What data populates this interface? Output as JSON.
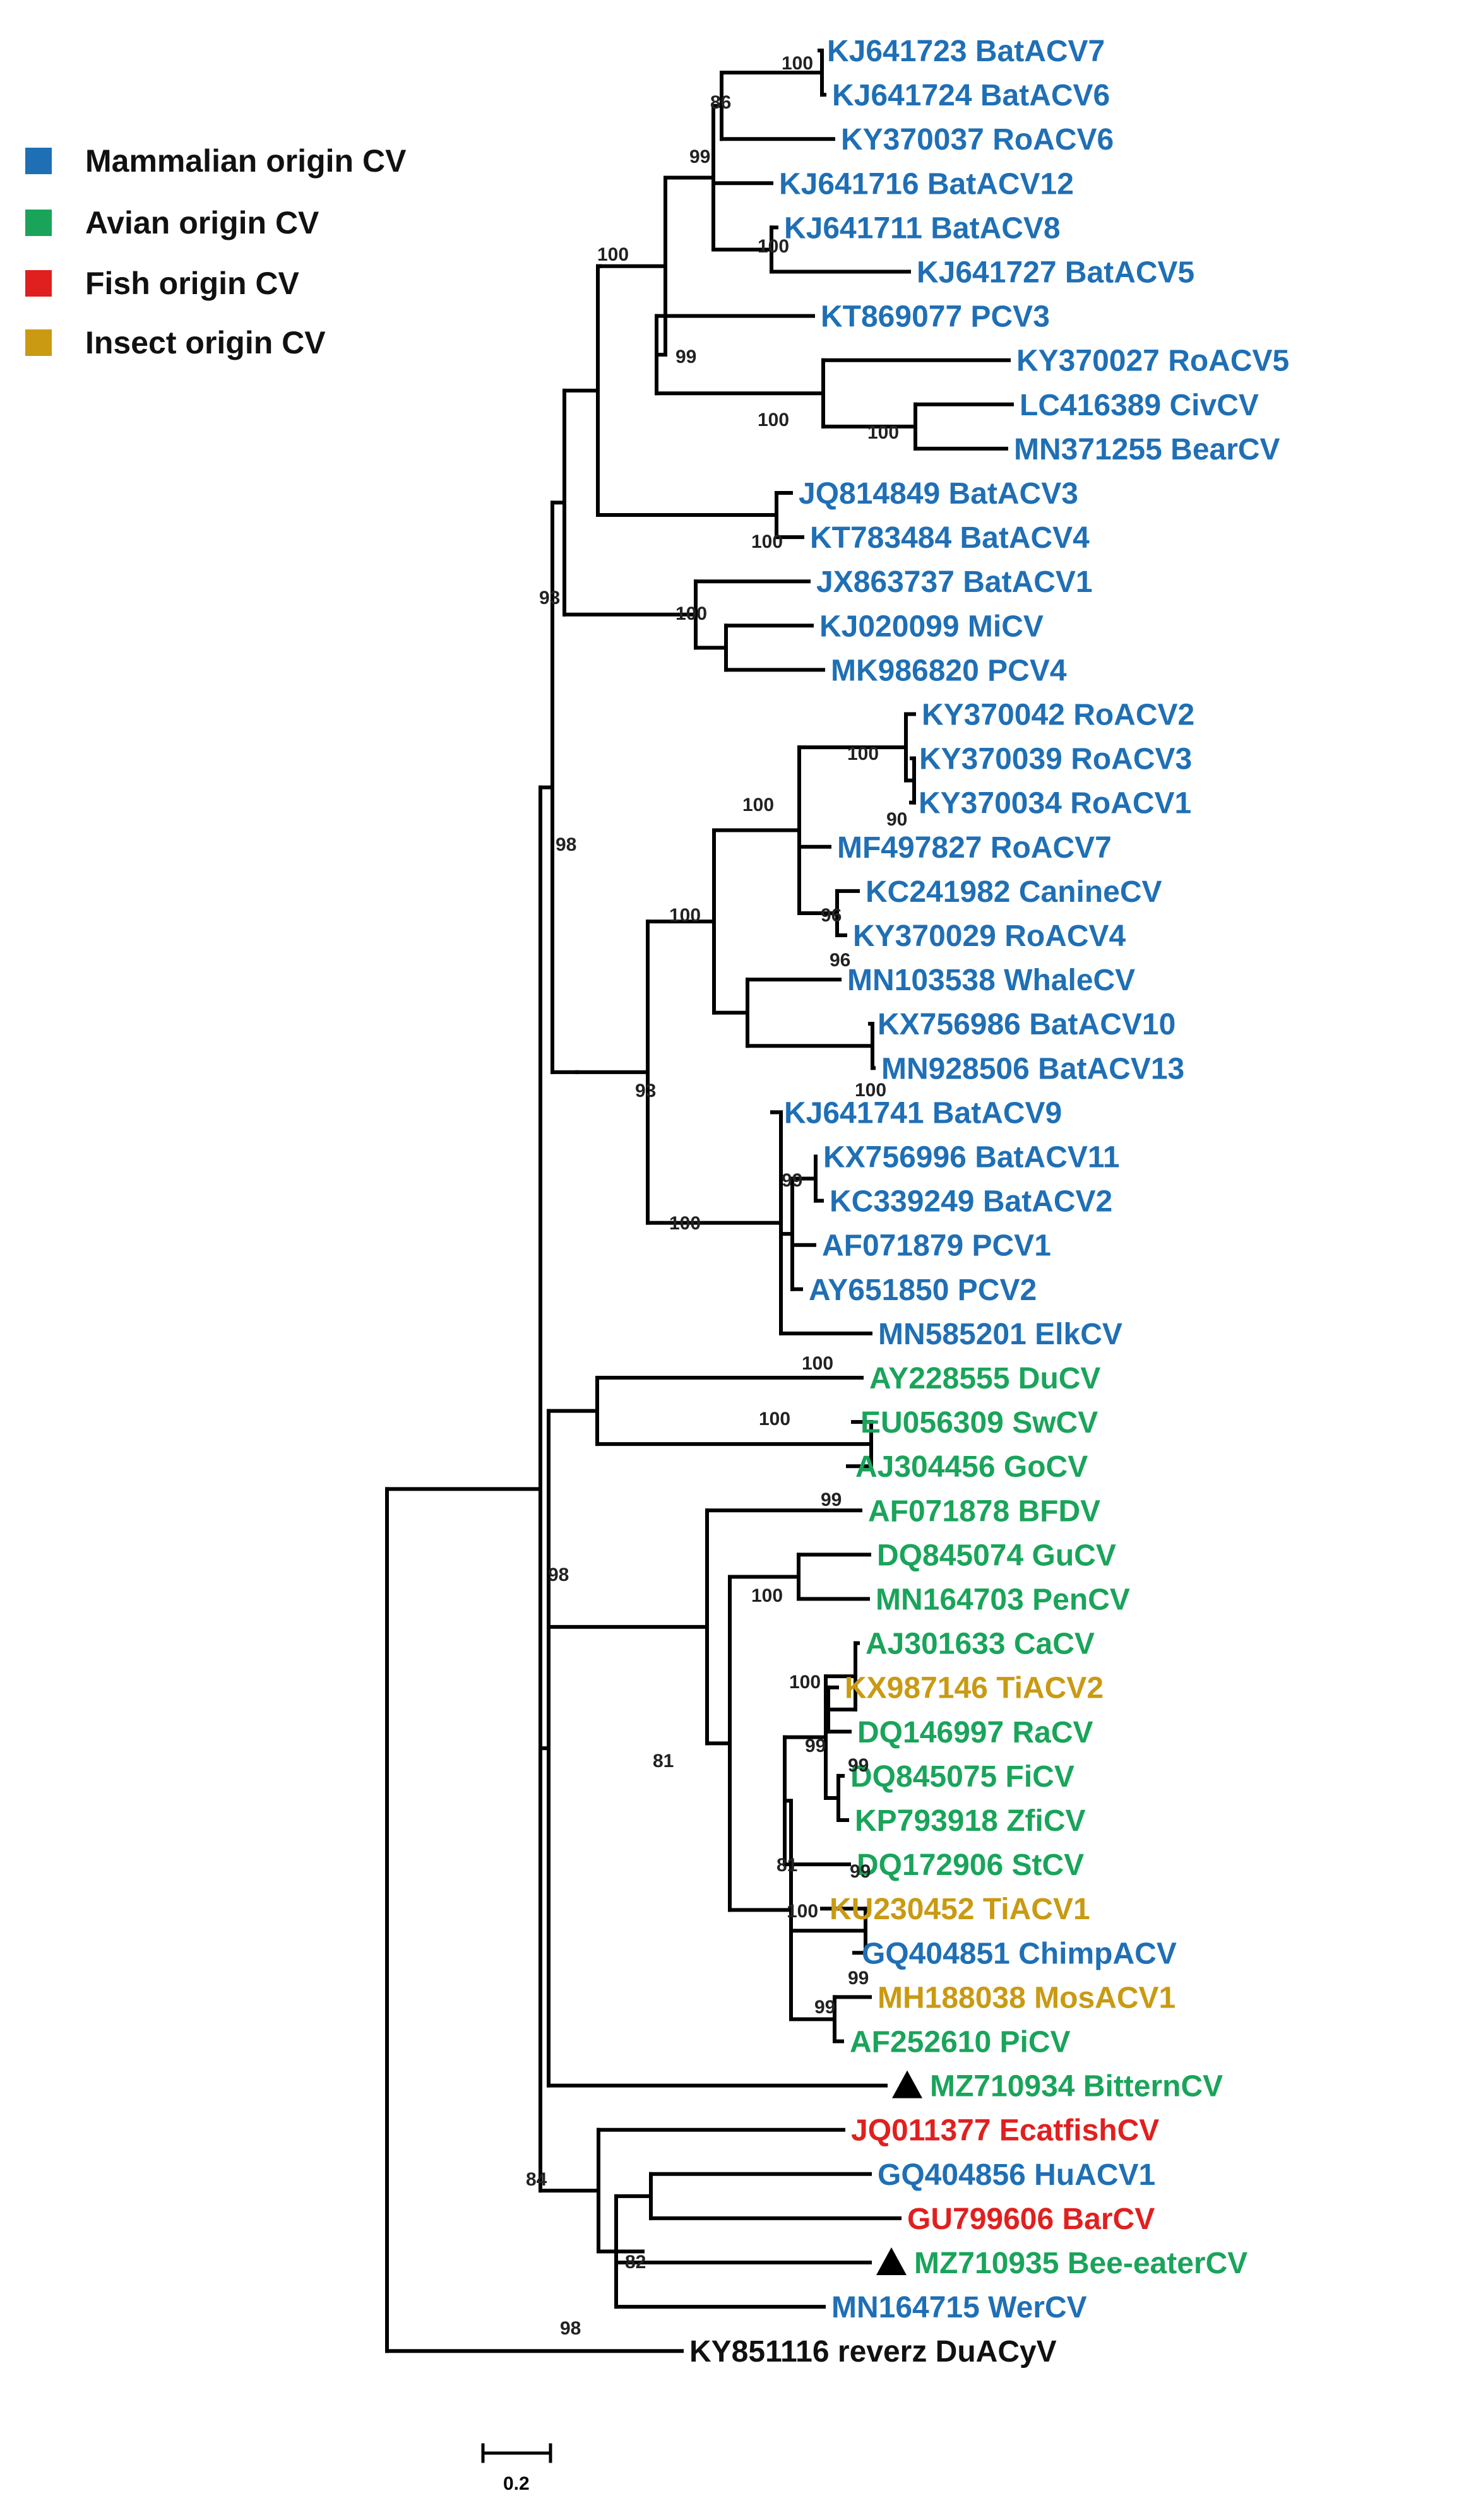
{
  "legend": [
    {
      "label": "Mammalian origin CV",
      "color": "#1f6fb5"
    },
    {
      "label": "Avian origin CV",
      "color": "#19a45a"
    },
    {
      "label": "Fish origin CV",
      "color": "#e0201f"
    },
    {
      "label": "Insect origin CV",
      "color": "#c99a12"
    }
  ],
  "colors": {
    "mammal": "#1f6fb5",
    "avian": "#19a45a",
    "fish": "#e0201f",
    "insect": "#c99a12",
    "outgroup": "#111111"
  },
  "scale_bar": {
    "label": "0.2"
  },
  "leaves": [
    {
      "label": "KJ641723 BatACV7",
      "group": "mammal"
    },
    {
      "label": "KJ641724 BatACV6",
      "group": "mammal"
    },
    {
      "label": "KY370037 RoACV6",
      "group": "mammal"
    },
    {
      "label": "KJ641716 BatACV12",
      "group": "mammal"
    },
    {
      "label": "KJ641711 BatACV8",
      "group": "mammal"
    },
    {
      "label": "KJ641727 BatACV5",
      "group": "mammal"
    },
    {
      "label": "KT869077 PCV3",
      "group": "mammal"
    },
    {
      "label": "KY370027 RoACV5",
      "group": "mammal"
    },
    {
      "label": "LC416389 CivCV",
      "group": "mammal"
    },
    {
      "label": "MN371255 BearCV",
      "group": "mammal"
    },
    {
      "label": "JQ814849 BatACV3",
      "group": "mammal"
    },
    {
      "label": "KT783484 BatACV4",
      "group": "mammal"
    },
    {
      "label": "JX863737 BatACV1",
      "group": "mammal"
    },
    {
      "label": "KJ020099 MiCV",
      "group": "mammal"
    },
    {
      "label": "MK986820 PCV4",
      "group": "mammal"
    },
    {
      "label": "KY370042 RoACV2",
      "group": "mammal"
    },
    {
      "label": "KY370039 RoACV3",
      "group": "mammal"
    },
    {
      "label": "KY370034 RoACV1",
      "group": "mammal"
    },
    {
      "label": "MF497827 RoACV7",
      "group": "mammal"
    },
    {
      "label": "KC241982 CanineCV",
      "group": "mammal"
    },
    {
      "label": "KY370029 RoACV4",
      "group": "mammal"
    },
    {
      "label": "MN103538 WhaleCV",
      "group": "mammal"
    },
    {
      "label": "KX756986 BatACV10",
      "group": "mammal"
    },
    {
      "label": "MN928506 BatACV13",
      "group": "mammal"
    },
    {
      "label": "KJ641741 BatACV9",
      "group": "mammal"
    },
    {
      "label": "KX756996 BatACV11",
      "group": "mammal"
    },
    {
      "label": "KC339249 BatACV2",
      "group": "mammal"
    },
    {
      "label": "AF071879 PCV1",
      "group": "mammal"
    },
    {
      "label": "AY651850 PCV2",
      "group": "mammal"
    },
    {
      "label": "MN585201 ElkCV",
      "group": "mammal"
    },
    {
      "label": "AY228555 DuCV",
      "group": "avian"
    },
    {
      "label": "EU056309 SwCV",
      "group": "avian"
    },
    {
      "label": "AJ304456 GoCV",
      "group": "avian"
    },
    {
      "label": "AF071878 BFDV",
      "group": "avian"
    },
    {
      "label": "DQ845074 GuCV",
      "group": "avian"
    },
    {
      "label": "MN164703 PenCV",
      "group": "avian"
    },
    {
      "label": "AJ301633 CaCV",
      "group": "avian"
    },
    {
      "label": "KX987146 TiACV2",
      "group": "insect"
    },
    {
      "label": "DQ146997 RaCV",
      "group": "avian"
    },
    {
      "label": "DQ845075 FiCV",
      "group": "avian"
    },
    {
      "label": "KP793918 ZfiCV",
      "group": "avian"
    },
    {
      "label": "DQ172906 StCV",
      "group": "avian"
    },
    {
      "label": "KU230452 TiACV1",
      "group": "insect"
    },
    {
      "label": "GQ404851 ChimpACV",
      "group": "mammal"
    },
    {
      "label": "MH188038 MosACV1",
      "group": "insect"
    },
    {
      "label": "AF252610 PiCV",
      "group": "avian"
    },
    {
      "label": "MZ710934 BitternCV",
      "group": "avian",
      "marker": true
    },
    {
      "label": "JQ011377 EcatfishCV",
      "group": "fish"
    },
    {
      "label": "GQ404856 HuACV1",
      "group": "mammal"
    },
    {
      "label": "GU799606 BarCV",
      "group": "fish"
    },
    {
      "label": "MZ710935 Bee-eaterCV",
      "group": "avian",
      "marker": true
    },
    {
      "label": "MN164715 WerCV",
      "group": "mammal"
    },
    {
      "label": "KY851116 reverz DuACyV",
      "group": "outgroup"
    }
  ],
  "bootstrap": [
    "100",
    "86",
    "99",
    "100",
    "100",
    "99",
    "100",
    "100",
    "100",
    "93",
    "100",
    "100",
    "90",
    "100",
    "96",
    "96",
    "100",
    "100",
    "98",
    "93",
    "99",
    "100",
    "100",
    "100",
    "99",
    "98",
    "100",
    "100",
    "99",
    "99",
    "81",
    "99",
    "100",
    "81",
    "99",
    "99",
    "84",
    "82",
    "98"
  ]
}
